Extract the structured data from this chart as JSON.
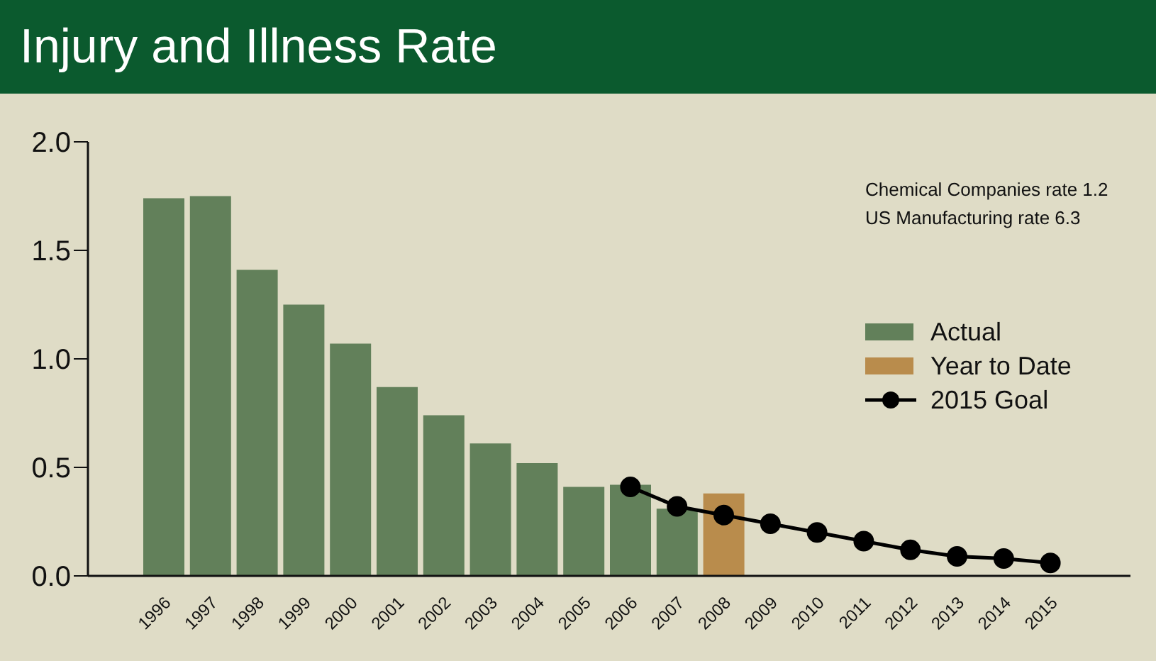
{
  "chart_data": {
    "type": "bar",
    "title": "Injury and Illness Rate",
    "stacked": true,
    "categories": [
      "1996",
      "1997",
      "1998",
      "1999",
      "2000",
      "2001",
      "2002",
      "2003",
      "2004",
      "2005",
      "2006",
      "2007",
      "2008",
      "2009",
      "2010",
      "2011",
      "2012",
      "2013",
      "2014",
      "2015"
    ],
    "series": [
      {
        "name": "Actual",
        "color": "#62805a",
        "values": [
          1.74,
          1.75,
          1.41,
          1.25,
          1.07,
          0.87,
          0.74,
          0.61,
          0.52,
          0.41,
          0.42,
          0.31,
          null,
          null,
          null,
          null,
          null,
          null,
          null,
          null
        ]
      },
      {
        "name": "Year to Date",
        "color": "#b98c4c",
        "values": [
          null,
          null,
          null,
          null,
          null,
          null,
          null,
          null,
          null,
          null,
          null,
          null,
          0.38,
          null,
          null,
          null,
          null,
          null,
          null,
          null
        ]
      },
      {
        "name": "2015 Goal",
        "type": "line",
        "color": "#000000",
        "marker": "circle",
        "values": [
          null,
          null,
          null,
          null,
          null,
          null,
          null,
          null,
          null,
          null,
          0.41,
          0.32,
          0.28,
          0.24,
          0.2,
          0.16,
          0.12,
          0.09,
          0.08,
          0.06
        ]
      }
    ],
    "ylim": [
      0,
      2
    ],
    "yticks": [
      {
        "value": 0,
        "label": "0.0"
      },
      0.5,
      {
        "value": 1,
        "label": "1.0"
      },
      1.5,
      {
        "value": 2,
        "label": "2.0"
      }
    ],
    "legend": "right",
    "annotations": [
      "Chemical Companies rate 1.2",
      "US Manufacturing rate 6.3"
    ]
  }
}
